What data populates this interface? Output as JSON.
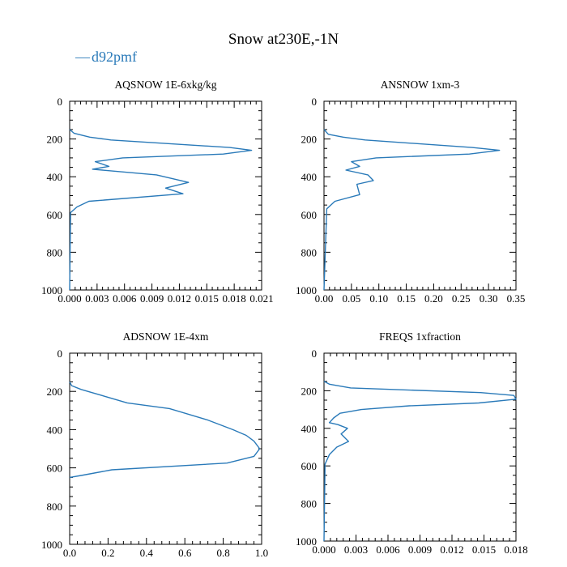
{
  "title": "Snow at230E,-1N",
  "legend": {
    "label": "d92pmf",
    "marker": "—",
    "color": "#2a7ab9"
  },
  "chart_data": [
    {
      "type": "line",
      "title": "AQSNOW  1E-6xkg/kg",
      "xlim": [
        0,
        0.021
      ],
      "ylim": [
        1000,
        0
      ],
      "xticks": [
        0,
        0.003,
        0.006,
        0.009,
        0.012,
        0.015,
        0.018,
        0.021
      ],
      "xtick_labels": [
        "0.000",
        "0.003",
        "0.006",
        "0.009",
        "0.012",
        "0.015",
        "0.018",
        "0.021"
      ],
      "yticks": [
        0,
        200,
        400,
        600,
        800,
        1000
      ],
      "ytick_labels": [
        "0",
        "200",
        "400",
        "600",
        "800",
        "1000"
      ],
      "series": [
        {
          "name": "d92pmf",
          "color": "#2a7ab9",
          "x": [
            0,
            0.0005,
            0.0022,
            0.0045,
            0.0175,
            0.0199,
            0.0168,
            0.0058,
            0.0028,
            0.0043,
            0.0025,
            0.0095,
            0.013,
            0.0105,
            0.0124,
            0.0021,
            0.0008,
            0.0001,
            0
          ],
          "y": [
            150,
            170,
            190,
            205,
            245,
            260,
            280,
            300,
            320,
            345,
            360,
            390,
            430,
            460,
            490,
            530,
            560,
            590,
            1000
          ]
        }
      ]
    },
    {
      "type": "line",
      "title": "ANSNOW  1xm-3",
      "xlim": [
        0,
        0.35
      ],
      "ylim": [
        1000,
        0
      ],
      "xticks": [
        0,
        0.05,
        0.1,
        0.15,
        0.2,
        0.25,
        0.3,
        0.35
      ],
      "xtick_labels": [
        "0.00",
        "0.05",
        "0.10",
        "0.15",
        "0.20",
        "0.25",
        "0.30",
        "0.35"
      ],
      "yticks": [
        0,
        200,
        400,
        600,
        800,
        1000
      ],
      "ytick_labels": [
        "0",
        "200",
        "400",
        "600",
        "800",
        "1000"
      ],
      "series": [
        {
          "name": "d92pmf",
          "color": "#2a7ab9",
          "x": [
            0,
            0.008,
            0.035,
            0.075,
            0.27,
            0.32,
            0.265,
            0.095,
            0.05,
            0.065,
            0.04,
            0.08,
            0.09,
            0.06,
            0.065,
            0.02,
            0.005,
            0
          ],
          "y": [
            150,
            175,
            190,
            205,
            245,
            260,
            280,
            300,
            320,
            345,
            365,
            390,
            420,
            440,
            495,
            530,
            570,
            1000
          ]
        }
      ]
    },
    {
      "type": "line",
      "title": "ADSNOW  1E-4xm",
      "xlim": [
        0,
        1.0
      ],
      "ylim": [
        1000,
        0
      ],
      "xticks": [
        0,
        0.2,
        0.4,
        0.6,
        0.8,
        1.0
      ],
      "xtick_labels": [
        "0.0",
        "0.2",
        "0.4",
        "0.6",
        "0.8",
        "1.0"
      ],
      "yticks": [
        0,
        200,
        400,
        600,
        800,
        1000
      ],
      "ytick_labels": [
        "0",
        "200",
        "400",
        "600",
        "800",
        "1000"
      ],
      "series": [
        {
          "name": "d92pmf",
          "color": "#2a7ab9",
          "x": [
            0,
            0.01,
            0.06,
            0.3,
            0.52,
            0.72,
            0.85,
            0.92,
            0.96,
            0.99,
            0.96,
            0.82,
            0.22,
            0.06,
            0
          ],
          "y": [
            150,
            170,
            190,
            260,
            290,
            350,
            400,
            430,
            460,
            500,
            540,
            575,
            610,
            640,
            650
          ]
        }
      ]
    },
    {
      "type": "line",
      "title": "FREQS  1xfraction",
      "xlim": [
        0,
        0.018
      ],
      "ylim": [
        1000,
        0
      ],
      "xticks": [
        0,
        0.003,
        0.006,
        0.009,
        0.012,
        0.015,
        0.018
      ],
      "xtick_labels": [
        "0.000",
        "0.003",
        "0.006",
        "0.009",
        "0.012",
        "0.015",
        "0.018"
      ],
      "yticks": [
        0,
        200,
        400,
        600,
        800,
        1000
      ],
      "ytick_labels": [
        "0",
        "200",
        "400",
        "600",
        "800",
        "1000"
      ],
      "series": [
        {
          "name": "d92pmf",
          "color": "#2a7ab9",
          "x": [
            0,
            0.0005,
            0.0025,
            0.0147,
            0.0178,
            0.018,
            0.0145,
            0.008,
            0.0035,
            0.0015,
            0.0009,
            0.0005,
            0.0013,
            0.0022,
            0.0016,
            0.0023,
            0.0012,
            0.0005,
            0.0001,
            0
          ],
          "y": [
            150,
            165,
            185,
            210,
            225,
            245,
            265,
            280,
            300,
            320,
            345,
            370,
            380,
            400,
            430,
            470,
            500,
            540,
            590,
            1000
          ]
        }
      ]
    }
  ]
}
